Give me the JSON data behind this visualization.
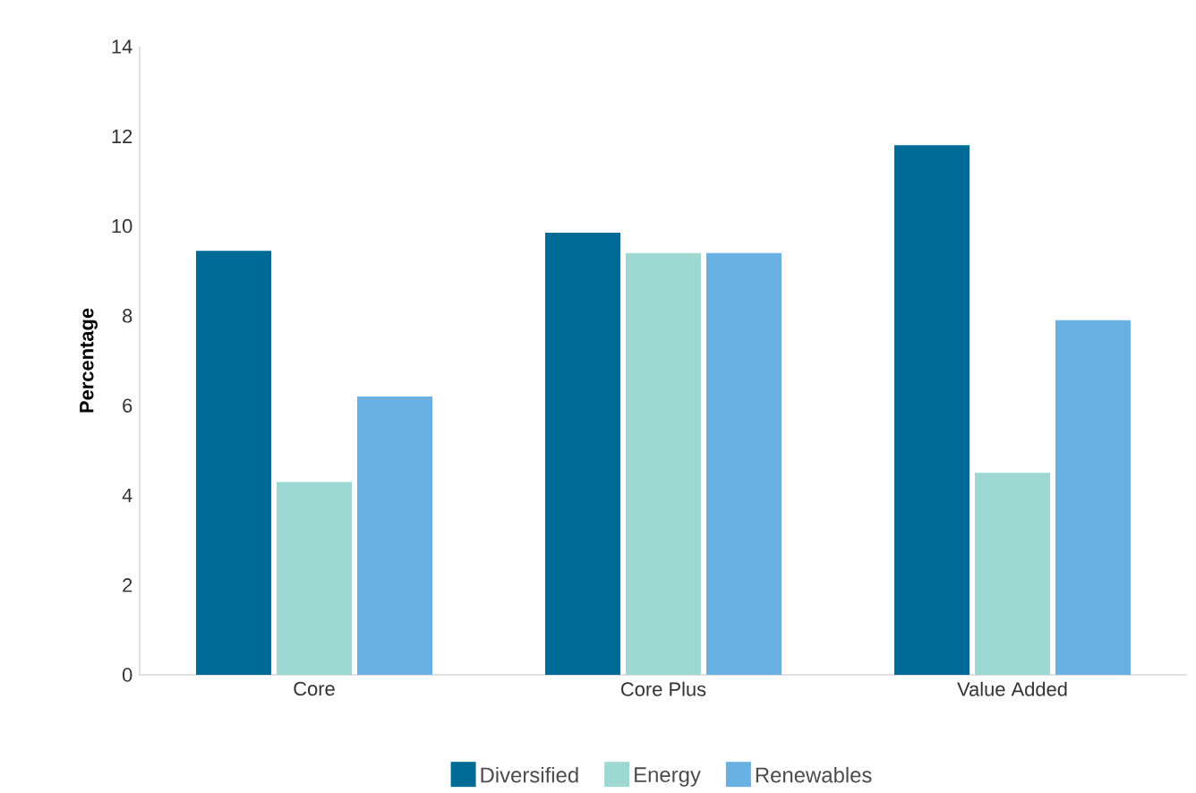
{
  "chart_data": {
    "type": "bar",
    "ylabel": "Percentage",
    "categories": [
      "Core",
      "Core Plus",
      "Value Added"
    ],
    "series": [
      {
        "name": "Diversified",
        "color": "#006a96",
        "values": [
          9.45,
          9.85,
          11.8
        ]
      },
      {
        "name": "Energy",
        "color": "#9ed8d3",
        "values": [
          4.3,
          9.4,
          4.5
        ]
      },
      {
        "name": "Renewables",
        "color": "#6ab1e3",
        "values": [
          6.2,
          9.4,
          7.9
        ]
      }
    ],
    "ylim": [
      0,
      14
    ],
    "yticks": [
      0,
      2,
      4,
      6,
      8,
      10,
      12,
      14
    ],
    "grid": false,
    "legend": "bottom"
  }
}
